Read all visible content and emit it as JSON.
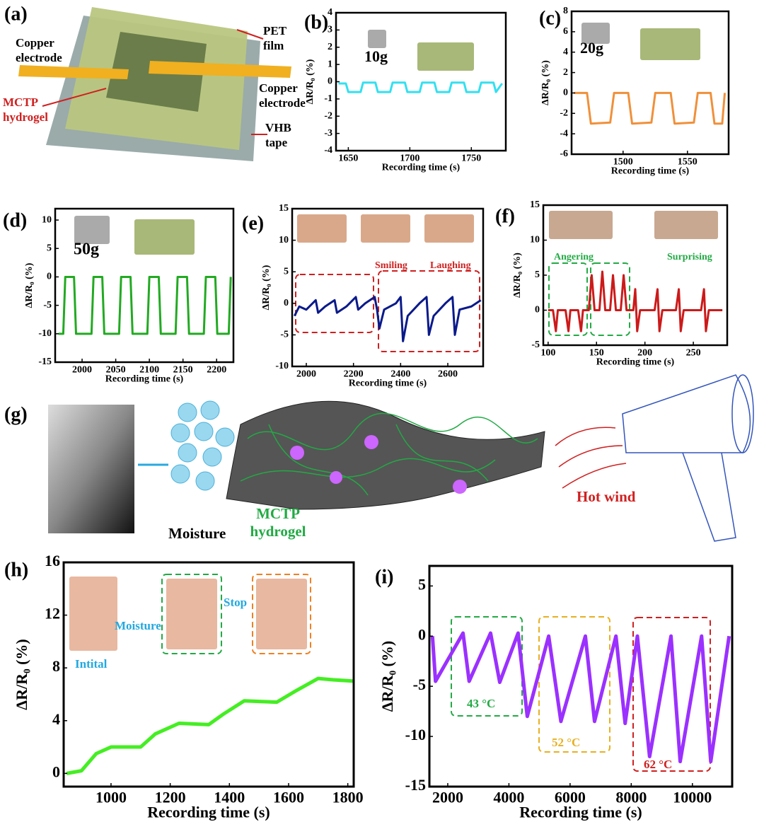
{
  "panel_a": {
    "panel": "(a)",
    "labels": [
      {
        "lines": [
          "PET",
          "film"
        ]
      },
      {
        "lines": [
          "Copper",
          "electrode"
        ]
      },
      {
        "lines": [
          "MCTP",
          "hydrogel"
        ]
      },
      {
        "lines": [
          "Copper",
          "electrode"
        ]
      },
      {
        "lines": [
          "VHB",
          "tape"
        ]
      }
    ]
  },
  "panel_g": {
    "panel": "(g)",
    "labels": [
      {
        "lines": [
          "Moisture"
        ]
      },
      {
        "lines": [
          "MCTP",
          "hydrogel"
        ]
      },
      {
        "lines": [
          "Hot wind"
        ]
      }
    ]
  },
  "chart_data": [
    {
      "type": "line",
      "panel": "(b)",
      "xlabel": "Recording time (s)",
      "ylabel": "ΔR/R₀ (%)",
      "xlim": [
        1640,
        1778
      ],
      "xticks": [
        1650,
        1700,
        1750
      ],
      "ylim": [
        -4,
        4
      ],
      "yticks": [
        -4,
        -3,
        -2,
        -1,
        0,
        1,
        2,
        3,
        4
      ],
      "series": [
        {
          "color": "#33e0f0",
          "x": [
            1642,
            1648,
            1650,
            1660,
            1662,
            1672,
            1674,
            1684,
            1686,
            1696,
            1698,
            1708,
            1710,
            1720,
            1722,
            1732,
            1734,
            1744,
            1746,
            1756,
            1758,
            1768,
            1770,
            1775
          ],
          "values": [
            -0.1,
            -0.1,
            -0.6,
            -0.6,
            -0.05,
            -0.05,
            -0.6,
            -0.6,
            -0.05,
            -0.05,
            -0.6,
            -0.6,
            -0.05,
            -0.05,
            -0.6,
            -0.6,
            -0.05,
            -0.05,
            -0.6,
            -0.6,
            -0.05,
            -0.05,
            -0.6,
            -0.1
          ]
        }
      ],
      "annotations": [
        "10g"
      ]
    },
    {
      "type": "line",
      "panel": "(c)",
      "xlabel": "Recording time (s)",
      "ylabel": "ΔR/R₀ (%)",
      "xlim": [
        1460,
        1582
      ],
      "xticks": [
        1500,
        1550
      ],
      "ylim": [
        -6,
        8
      ],
      "yticks": [
        -6,
        -4,
        -2,
        0,
        2,
        4,
        6,
        8
      ],
      "series": [
        {
          "color": "#f0903a",
          "x": [
            1462,
            1472,
            1475,
            1490,
            1493,
            1504,
            1507,
            1522,
            1525,
            1537,
            1540,
            1555,
            1558,
            1568,
            1571,
            1577,
            1579
          ],
          "values": [
            0,
            0,
            -3,
            -2.9,
            0,
            0,
            -3,
            -2.9,
            0,
            0,
            -3,
            -2.9,
            0,
            0,
            -3,
            -3,
            0
          ]
        }
      ],
      "annotations": [
        "20g"
      ]
    },
    {
      "type": "line",
      "panel": "(d)",
      "xlabel": "Recording time (s)",
      "ylabel": "ΔR/R₀ (%)",
      "xlim": [
        1960,
        2225
      ],
      "xticks": [
        2000,
        2050,
        2100,
        2150,
        2200
      ],
      "ylim": [
        -15,
        12
      ],
      "yticks": [
        -15,
        -10,
        -5,
        0,
        5,
        10
      ],
      "series": [
        {
          "color": "#22aa22",
          "x": [
            1965,
            1972,
            1975,
            1988,
            1991,
            2014,
            2017,
            2030,
            2033,
            2055,
            2058,
            2072,
            2075,
            2097,
            2100,
            2114,
            2117,
            2139,
            2142,
            2156,
            2159,
            2181,
            2184,
            2198,
            2201,
            2218,
            2221
          ],
          "values": [
            -10,
            -10,
            0,
            0,
            -10,
            -10,
            0,
            0,
            -10,
            -10,
            0,
            0,
            -10,
            -10,
            0,
            0,
            -10,
            -10,
            0,
            0,
            -10,
            -10,
            0,
            0,
            -10,
            -10,
            0
          ]
        }
      ],
      "annotations": [
        "50g"
      ]
    },
    {
      "type": "line",
      "panel": "(e)",
      "xlabel": "Recording time (s)",
      "ylabel": "ΔR/R₀ (%)",
      "xlim": [
        1940,
        2750
      ],
      "xticks": [
        2000,
        2200,
        2400,
        2600
      ],
      "ylim": [
        -10,
        15
      ],
      "yticks": [
        -10,
        -5,
        0,
        5,
        10,
        15
      ],
      "series": [
        {
          "color": "#0a1a8a",
          "x": [
            1950,
            1970,
            2000,
            2040,
            2050,
            2080,
            2120,
            2130,
            2170,
            2210,
            2220,
            2250,
            2290,
            2300,
            2310,
            2330,
            2380,
            2400,
            2410,
            2430,
            2480,
            2510,
            2520,
            2540,
            2590,
            2620,
            2630,
            2650,
            2700,
            2740
          ],
          "values": [
            -2,
            -0.5,
            -1,
            0.5,
            -1.5,
            -0.5,
            0.5,
            -1.5,
            -0.5,
            1,
            -1,
            0,
            1,
            -1,
            -4,
            -1,
            0,
            1,
            -6,
            -2,
            0,
            1,
            -5,
            -2,
            0,
            1,
            -5,
            -1,
            -0.5,
            0.5
          ]
        }
      ],
      "annotations": [
        "Smiling",
        "Laughing"
      ]
    },
    {
      "type": "line",
      "panel": "(f)",
      "xlabel": "Recording time (s)",
      "ylabel": "ΔR/R₀ (%)",
      "xlim": [
        95,
        285
      ],
      "xticks": [
        100,
        150,
        200,
        250
      ],
      "ylim": [
        -5,
        15
      ],
      "yticks": [
        -5,
        0,
        5,
        10,
        15
      ],
      "series": [
        {
          "color": "#cc1a1a",
          "x": [
            100,
            105,
            108,
            110,
            118,
            121,
            123,
            131,
            134,
            136,
            142,
            145,
            148,
            153,
            156,
            159,
            164,
            167,
            170,
            175,
            178,
            181,
            188,
            190,
            192,
            195,
            210,
            213,
            215,
            218,
            232,
            235,
            237,
            240,
            258,
            261,
            263,
            266,
            280
          ],
          "values": [
            0,
            0,
            -3,
            0,
            0,
            -3,
            0,
            0,
            -3,
            0,
            0,
            5,
            0,
            0,
            5.5,
            0,
            0,
            5,
            0,
            0,
            5,
            0,
            0,
            3,
            -3,
            0,
            0,
            3,
            -3,
            0,
            0,
            3,
            -3,
            0,
            0,
            3,
            -3,
            0,
            0
          ]
        }
      ],
      "annotations": [
        "Angering",
        "Surprising"
      ]
    },
    {
      "type": "line",
      "panel": "(h)",
      "xlabel": "Recording time (s)",
      "ylabel": "ΔR/R₀ (%)",
      "xlim": [
        840,
        1820
      ],
      "xticks": [
        1000,
        1200,
        1400,
        1600,
        1800
      ],
      "ylim": [
        -1,
        16
      ],
      "yticks": [
        0,
        4,
        8,
        12,
        16
      ],
      "series": [
        {
          "color": "#44ee22",
          "x": [
            850,
            900,
            950,
            1000,
            1100,
            1150,
            1230,
            1330,
            1380,
            1450,
            1560,
            1620,
            1700,
            1750,
            1820
          ],
          "values": [
            0,
            0.2,
            1.5,
            2,
            2,
            3,
            3.8,
            3.7,
            4.5,
            5.5,
            5.4,
            6.2,
            7.2,
            7.1,
            7
          ]
        }
      ],
      "annotations": [
        "Moisture",
        "Stop",
        "Intital"
      ]
    },
    {
      "type": "line",
      "panel": "(i)",
      "xlabel": "Recording time (s)",
      "ylabel": "ΔR/R₀ (%)",
      "xlim": [
        1400,
        11300
      ],
      "xticks": [
        2000,
        4000,
        6000,
        8000,
        10000
      ],
      "ylim": [
        -15,
        7
      ],
      "yticks": [
        -15,
        -10,
        -5,
        0,
        5
      ],
      "series": [
        {
          "color": "#9b30ff",
          "x": [
            1500,
            1600,
            2500,
            2700,
            3400,
            3700,
            4300,
            4600,
            5300,
            5700,
            6500,
            6800,
            7500,
            7800,
            8200,
            8600,
            9300,
            9600,
            10300,
            10600,
            11200
          ],
          "values": [
            0,
            -4.5,
            0.3,
            -4.5,
            0.3,
            -4.6,
            0.3,
            -8,
            0,
            -8.5,
            0,
            -8.5,
            0,
            -8.7,
            0,
            -12,
            0,
            -12.5,
            0,
            -12.5,
            0
          ]
        }
      ],
      "annotations": [
        "43 °C",
        "52 °C",
        "62 °C"
      ]
    }
  ]
}
